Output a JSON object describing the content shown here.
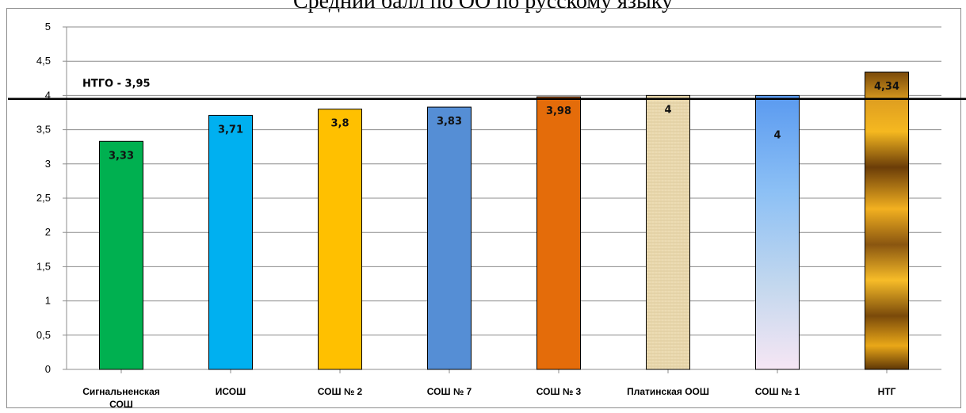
{
  "chart_data": {
    "type": "bar",
    "title": "Средний балл по ОО по русскому языку",
    "categories": [
      "Сигнальненская СОШ",
      "ИСОШ",
      "СОШ № 2",
      "СОШ № 7",
      "СОШ № 3",
      "Платинская ООШ",
      "СОШ № 1",
      "НТГ"
    ],
    "values": [
      3.33,
      3.71,
      3.8,
      3.83,
      3.98,
      4,
      4,
      4.34
    ],
    "data_labels": [
      "3,33",
      "3,71",
      "3,8",
      "3,83",
      "3,98",
      "4",
      "4",
      "4,34"
    ],
    "bar_colors": [
      "#00b050",
      "#00b0f0",
      "#ffc000",
      "#558ed5",
      "#e46c0a",
      "#e8d9b0",
      "#6fa8f0",
      "#c8860a"
    ],
    "ylim": [
      0,
      5
    ],
    "yticks": [
      "0",
      "0,5",
      "1",
      "1,5",
      "2",
      "2,5",
      "3",
      "3,5",
      "4",
      "4,5",
      "5"
    ],
    "grid": true,
    "reference_line": {
      "value": 3.95,
      "label": "НТГО - 3,95"
    },
    "xlabel": "",
    "ylabel": ""
  }
}
